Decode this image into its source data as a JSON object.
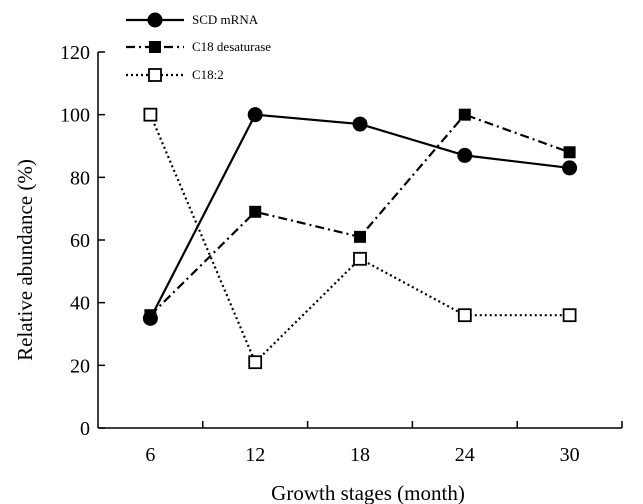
{
  "chart_data": {
    "type": "line",
    "title": "",
    "xlabel": "Growth stages (month)",
    "ylabel": "Relative abundance (%)",
    "x": [
      6,
      12,
      18,
      24,
      30
    ],
    "x_tick_labels": [
      "6",
      "12",
      "18",
      "24",
      "30"
    ],
    "ylim": [
      0,
      120
    ],
    "y_ticks": [
      0,
      20,
      40,
      60,
      80,
      100,
      120
    ],
    "y_tick_labels": [
      "0",
      "20",
      "40",
      "60",
      "80",
      "100",
      "120"
    ],
    "grid": false,
    "legend_position": "top-left",
    "series": [
      {
        "name": "SCD mRNA",
        "values": [
          35,
          100,
          97,
          87,
          83
        ],
        "marker": "filled-circle",
        "line_style": "solid",
        "color": "#000000"
      },
      {
        "name": "C18 desaturase",
        "values": [
          36,
          69,
          61,
          100,
          88
        ],
        "marker": "filled-square",
        "line_style": "dash-dot",
        "color": "#000000"
      },
      {
        "name": "C18:2",
        "values": [
          100,
          21,
          54,
          36,
          36
        ],
        "marker": "open-square",
        "line_style": "dotted",
        "color": "#000000"
      }
    ]
  }
}
